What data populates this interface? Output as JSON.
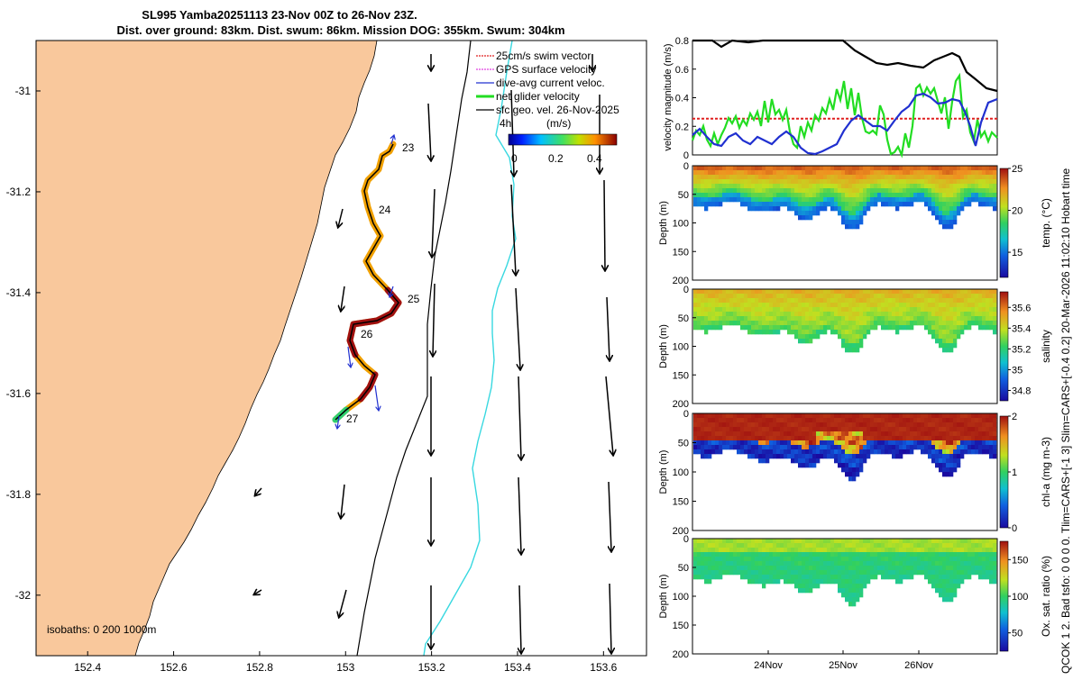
{
  "title_line1": "SL995 Yamba20251113 23-Nov 00Z to 26-Nov 23Z.",
  "title_line2": "Dist. over ground: 83km. Dist. swum: 86km. Mission DOG: 355km. Swum: 304km",
  "side_note": "QCOK 1  2. Bad tsfo: 0  0  0  0. Tlim=CARS+[-1 3] Slim=CARS+[-0.4 0.2] 20-Mar-2026 11:02:10 Hobart time",
  "colors": {
    "land": "#f9c89c",
    "red_vec": "#e02020",
    "magenta_vec": "#e040e0",
    "blue_vec": "#2030d0",
    "green_vec": "#22dd22",
    "black": "#000000",
    "cyan": "#38d8e0"
  },
  "chart_data": [
    {
      "type": "map",
      "name": "glider track map",
      "x_ticks": [
        "152.4",
        "152.6",
        "152.8",
        "153",
        "153.2",
        "153.4",
        "153.6"
      ],
      "xlim": [
        152.28,
        153.7
      ],
      "y_ticks": [
        "-31",
        "-31.2",
        "-31.4",
        "-31.6",
        "-31.8",
        "-32"
      ],
      "ylim": [
        -32.12,
        -30.9
      ],
      "legend": [
        {
          "label": "25cm/s swim vector",
          "color": "#e02020"
        },
        {
          "label": "GPS surface velocity",
          "color": "#e040e0"
        },
        {
          "label": "dive-avg current veloc.",
          "color": "#2030d0"
        },
        {
          "label": "net glider velocity",
          "color": "#22dd22"
        },
        {
          "label": "sfc geo. vel. 26-Nov-2025",
          "color": "#000000"
        }
      ],
      "scale_label": "4h",
      "colorbar": {
        "label": "(m/s)",
        "ticks": [
          "0",
          "0.2",
          "0.4"
        ]
      },
      "day_labels": [
        "23",
        "24",
        "25",
        "26",
        "27"
      ],
      "isobaths_label": "isobaths: 0   200  1000m"
    },
    {
      "type": "line",
      "name": "velocity magnitude",
      "ylabel": "velocity magnitude (m/s)",
      "ylim": [
        0,
        0.8
      ],
      "y_ticks": [
        "0",
        "0.2",
        "0.4",
        "0.6",
        "0.8"
      ],
      "series": [
        {
          "name": "sfc geo. vel.",
          "color": "#000000"
        },
        {
          "name": "25cm/s swim vector",
          "color": "#e02020",
          "values": [
            0.25
          ]
        },
        {
          "name": "net glider velocity",
          "color": "#22dd22"
        },
        {
          "name": "dive-avg current veloc.",
          "color": "#2030d0"
        }
      ]
    },
    {
      "type": "heatmap",
      "name": "temperature section",
      "ylabel": "Depth (m)",
      "y_ticks": [
        "0",
        "50",
        "100",
        "150",
        "200"
      ],
      "colorbar_label": "temp. (°C)",
      "colorbar_ticks": [
        "25",
        "20",
        "15"
      ],
      "clim": [
        12,
        25
      ]
    },
    {
      "type": "heatmap",
      "name": "salinity section",
      "ylabel": "Depth (m)",
      "y_ticks": [
        "0",
        "50",
        "100",
        "150",
        "200"
      ],
      "colorbar_label": "salinity",
      "colorbar_ticks": [
        "35.6",
        "35.4",
        "35.2",
        "35",
        "34.8"
      ],
      "clim": [
        34.7,
        35.75
      ]
    },
    {
      "type": "heatmap",
      "name": "chlorophyll section",
      "ylabel": "Depth (m)",
      "y_ticks": [
        "0",
        "50",
        "100",
        "150",
        "200"
      ],
      "colorbar_label": "chl-a (mg m-3)",
      "colorbar_ticks": [
        "2",
        "1",
        "0"
      ],
      "clim": [
        0,
        2
      ]
    },
    {
      "type": "heatmap",
      "name": "oxygen saturation section",
      "ylabel": "Depth (m)",
      "y_ticks": [
        "0",
        "50",
        "100",
        "150",
        "200"
      ],
      "colorbar_label": "Ox. sat. ratio (%)",
      "colorbar_ticks": [
        "150",
        "100",
        "50"
      ],
      "clim": [
        25,
        175
      ],
      "x_ticks": [
        "24Nov",
        "25Nov",
        "26Nov"
      ]
    }
  ]
}
